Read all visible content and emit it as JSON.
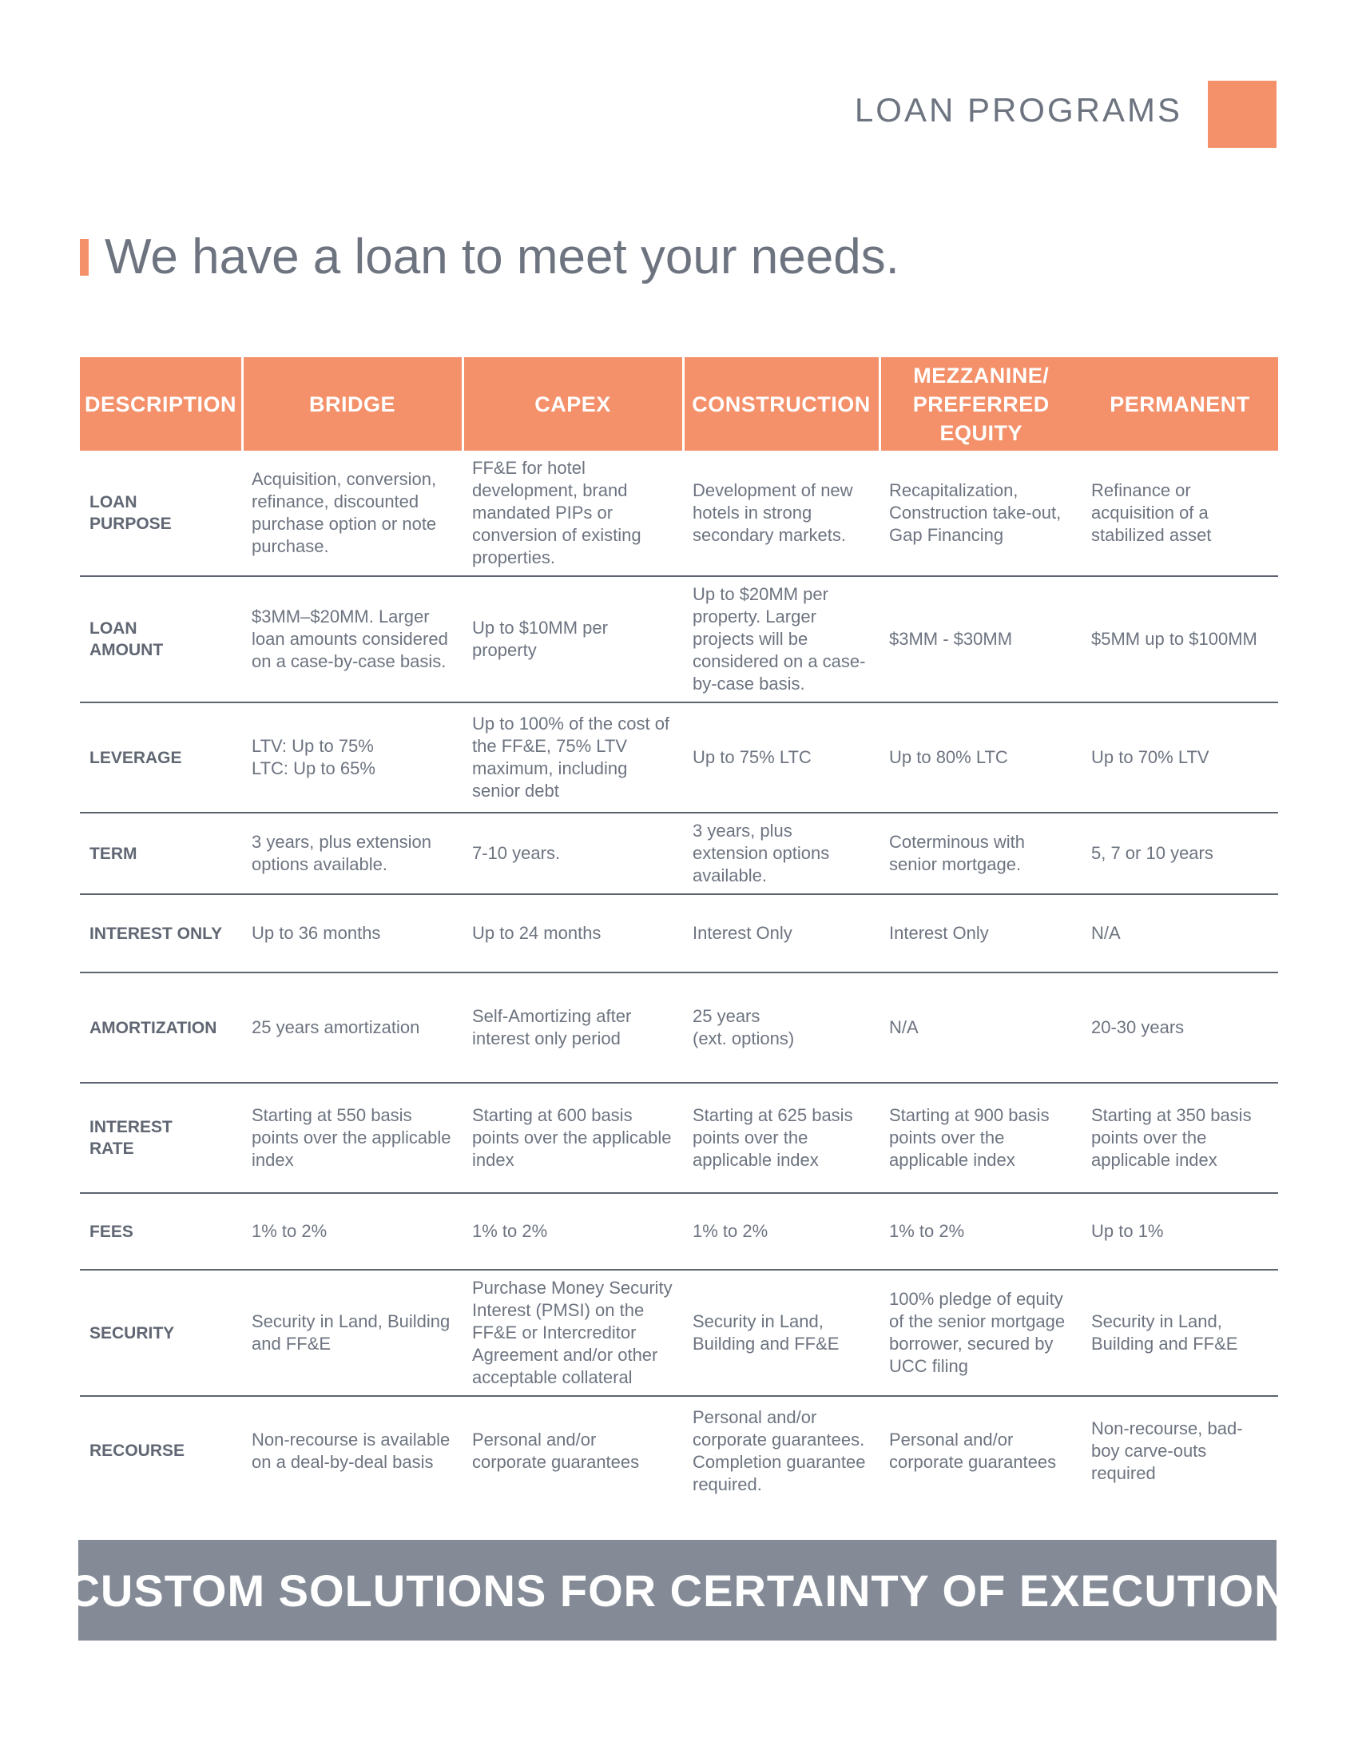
{
  "header": {
    "title": "LOAN PROGRAMS"
  },
  "headline": "We have a loan to meet your needs.",
  "table": {
    "columns": [
      "DESCRIPTION",
      "BRIDGE",
      "CAPEX",
      "CONSTRUCTION",
      "MEZZANINE/\nPREFERRED\nEQUITY",
      "PERMANENT"
    ],
    "rows": [
      {
        "label": "LOAN\nPURPOSE",
        "cells": [
          "Acquisition, conversion, refinance, discounted purchase option or note purchase.",
          "FF&E for hotel development, brand mandated PIPs or conversion of existing properties.",
          "Development of new hotels in strong secondary markets.",
          "Recapitalization, Construction take-out, Gap Financing",
          "Refinance or acquisition of a stabilized asset"
        ]
      },
      {
        "label": "LOAN\nAMOUNT",
        "cells": [
          "$3MM–$20MM. Larger loan amounts considered on a case-by-case basis.",
          "Up to $10MM per property",
          "Up to $20MM per property. Larger projects will be considered on a case-by-case basis.",
          "$3MM - $30MM",
          "$5MM up to $100MM"
        ]
      },
      {
        "label": "LEVERAGE",
        "cells": [
          "LTV: Up to 75%\nLTC: Up to 65%",
          "Up to 100% of the cost of the FF&E, 75% LTV maximum, including senior debt",
          "Up to 75% LTC",
          "Up to 80% LTC",
          "Up to 70% LTV"
        ]
      },
      {
        "label": "TERM",
        "cells": [
          "3 years, plus extension options available.",
          "7-10 years.",
          "3 years, plus extension options available.",
          "Coterminous with senior mortgage.",
          "5, 7 or 10 years"
        ]
      },
      {
        "label": "INTEREST ONLY",
        "cells": [
          "Up to 36 months",
          "Up to 24 months",
          "Interest Only",
          "Interest Only",
          "N/A"
        ]
      },
      {
        "label": "AMORTIZATION",
        "cells": [
          "25 years amortization",
          "Self-Amortizing after interest only period",
          "25 years\n(ext. options)",
          "N/A",
          "20-30 years"
        ]
      },
      {
        "label": "INTEREST\nRATE",
        "cells": [
          "Starting at 550 basis points over the applicable index",
          "Starting at 600 basis points over the applicable index",
          "Starting at 625 basis points over the applicable index",
          "Starting at 900 basis points over the applicable index",
          "Starting at 350 basis points over the applicable index"
        ]
      },
      {
        "label": "FEES",
        "cells": [
          "1% to 2%",
          "1% to 2%",
          "1% to 2%",
          "1% to 2%",
          "Up to 1%"
        ]
      },
      {
        "label": "SECURITY",
        "cells": [
          "Security in Land, Building and FF&E",
          "Purchase Money Security Interest (PMSI) on the FF&E or Intercreditor Agreement and/or other acceptable collateral",
          "Security in Land, Building and FF&E",
          "100% pledge of equity of the senior mortgage borrower, secured by UCC filing",
          "Security in Land, Building and FF&E"
        ]
      },
      {
        "label": "RECOURSE",
        "cells": [
          "Non-recourse is available on a deal-by-deal basis",
          "Personal and/or corporate guarantees",
          "Personal and/or corporate guarantees. Completion guarantee required.",
          "Personal and/or corporate guarantees",
          "Non-recourse, bad-boy carve-outs required"
        ]
      }
    ]
  },
  "banner": "CUSTOM SOLUTIONS FOR CERTAINTY OF EXECUTION",
  "colors": {
    "accent": "#f4916b",
    "text": "#6d7480",
    "banner": "#848b96"
  }
}
